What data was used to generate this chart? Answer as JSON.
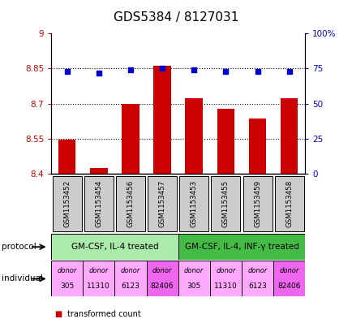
{
  "title": "GDS5384 / 8127031",
  "samples": [
    "GSM1153452",
    "GSM1153454",
    "GSM1153456",
    "GSM1153457",
    "GSM1153453",
    "GSM1153455",
    "GSM1153459",
    "GSM1153458"
  ],
  "bar_values": [
    8.548,
    8.425,
    8.7,
    8.862,
    8.725,
    8.678,
    8.638,
    8.725
  ],
  "percentile_values": [
    73,
    72,
    74,
    75,
    74,
    73,
    73,
    73
  ],
  "y_min": 8.4,
  "y_max": 9.0,
  "y_ticks": [
    8.4,
    8.55,
    8.7,
    8.85,
    9.0
  ],
  "y_tick_labels": [
    "8.4",
    "8.55",
    "8.7",
    "8.85",
    "9"
  ],
  "y2_ticks": [
    0,
    25,
    50,
    75,
    100
  ],
  "y2_tick_labels": [
    "0",
    "25",
    "50",
    "75",
    "100%"
  ],
  "bar_color": "#cc0000",
  "dot_color": "#0000cc",
  "dotted_lines": [
    8.55,
    8.7,
    8.85
  ],
  "protocol_groups": [
    {
      "label": "GM-CSF, IL-4 treated",
      "start": 0,
      "end": 4,
      "color": "#aaeaaa"
    },
    {
      "label": "GM-CSF, IL-4, INF-γ treated",
      "start": 4,
      "end": 8,
      "color": "#44bb44"
    }
  ],
  "individuals": [
    "305",
    "11310",
    "6123",
    "82406",
    "305",
    "11310",
    "6123",
    "82406"
  ],
  "ind_colors": [
    "#ffaaff",
    "#ffaaff",
    "#ffaaff",
    "#ee66ee",
    "#ffaaff",
    "#ffaaff",
    "#ffaaff",
    "#ee66ee"
  ],
  "sample_box_color": "#cccccc",
  "xlabel_color": "#cc0000",
  "ylabel_color_right": "#0000cc",
  "title_fontsize": 11
}
